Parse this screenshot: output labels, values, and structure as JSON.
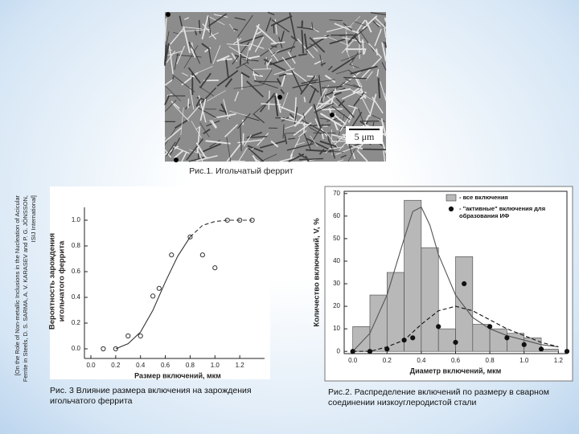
{
  "figure1": {
    "scale_label": "5 μm",
    "caption": "Рис.1. Игольчатый феррит"
  },
  "reference": [
    "[On the Role of Non-metallic Inclusions in the Nucleation of Acicular",
    "Ferrite in Steels, D. S. SARMA, A. V. KARASEV and P. G. JÖNSSON,",
    "ISIJ International]"
  ],
  "chart_data": [
    {
      "type": "scatter",
      "caption": "Рис. 3 Влияние размера включения на зарождения игольчатого феррита",
      "xlabel": "Размер включений, мкм",
      "ylabel": [
        "Вероятность зарождения",
        "игольчатого феррита"
      ],
      "xlim": [
        0,
        1.4
      ],
      "xticks": [
        {
          "value": 0,
          "label": "0.0"
        },
        0.2,
        0.4,
        0.6,
        0.8,
        {
          "value": 1,
          "label": "1.0"
        },
        1.2
      ],
      "ylim": [
        -0.05,
        1.1
      ],
      "yticks": [
        {
          "value": 0,
          "label": "0.0"
        },
        0.2,
        0.4,
        0.6,
        0.8,
        {
          "value": 1,
          "label": "1.0"
        }
      ],
      "box": false,
      "series": [
        {
          "type": "scatter",
          "color": "#333333",
          "filled": false,
          "x": [
            0.1,
            0.2,
            0.3,
            0.4,
            0.5,
            0.55,
            0.65,
            0.8,
            0.9,
            1.0,
            1.1,
            1.2,
            1.3
          ],
          "values": [
            0,
            0,
            0.1,
            0.1,
            0.41,
            0.47,
            0.73,
            0.87,
            0.73,
            0.63,
            1.0,
            1.0,
            1.0
          ]
        },
        {
          "type": "line",
          "color": "#333333",
          "dashed": false,
          "x": [
            0.2,
            0.3,
            0.4,
            0.5,
            0.6,
            0.7,
            0.8
          ],
          "values": [
            0,
            0.04,
            0.13,
            0.3,
            0.52,
            0.72,
            0.87
          ]
        },
        {
          "type": "line",
          "color": "#333333",
          "dashed": true,
          "x": [
            0.8,
            0.9,
            1.0,
            1.1,
            1.2,
            1.3
          ],
          "values": [
            0.87,
            0.96,
            0.99,
            1.0,
            1.0,
            1.0
          ]
        }
      ]
    },
    {
      "type": "histogram",
      "caption": "Рис.2. Распределение включений по размеру в сварном соединении низкоуглеродистой стали",
      "xlabel": "Диаметр включений, мкм",
      "ylabel": "Количество включений, V, %",
      "xlim": [
        -0.05,
        1.25
      ],
      "xticks": [
        {
          "value": 0,
          "label": "0.0"
        },
        0.2,
        0.4,
        0.6,
        0.8,
        {
          "value": 1,
          "label": "1.0"
        },
        1.2
      ],
      "ylim": [
        -1,
        71
      ],
      "yticks": [
        0,
        10,
        20,
        30,
        40,
        50,
        60,
        70
      ],
      "box": true,
      "legend": "upper right",
      "bins": [
        0,
        0.1,
        0.2,
        0.3,
        0.4,
        0.5,
        0.6,
        0.7,
        0.8,
        0.9,
        1.0,
        1.1,
        1.2
      ],
      "series": [
        {
          "type": "histogram",
          "name": "- все включения",
          "color": "#b8b8b8",
          "values": [
            11,
            25,
            35,
            67,
            46,
            10,
            42,
            12,
            10,
            8,
            6,
            1
          ]
        },
        {
          "type": "line",
          "color": "#555555",
          "dashed": false,
          "x": [
            0,
            0.1,
            0.2,
            0.3,
            0.35,
            0.4,
            0.45,
            0.5,
            0.6,
            0.7,
            0.8,
            0.9,
            1.0,
            1.1,
            1.2
          ],
          "values": [
            0,
            8,
            25,
            50,
            62,
            64,
            56,
            43,
            25,
            15,
            10,
            7,
            5,
            3,
            2
          ]
        },
        {
          "type": "scatter",
          "name": "- \"активные\" включения для образования ИФ",
          "color": "#111111",
          "filled": true,
          "x": [
            0,
            0.1,
            0.2,
            0.3,
            0.35,
            0.5,
            0.6,
            0.65,
            0.8,
            0.9,
            1.0,
            1.1,
            1.25
          ],
          "values": [
            0,
            0,
            1,
            5,
            6,
            11,
            4,
            30,
            11,
            6,
            3,
            1,
            0
          ]
        },
        {
          "type": "line",
          "color": "#111111",
          "dashed": true,
          "x": [
            0,
            0.1,
            0.2,
            0.3,
            0.4,
            0.5,
            0.6,
            0.7,
            0.8,
            0.9,
            1.0,
            1.1,
            1.2
          ],
          "values": [
            0,
            0,
            2,
            5,
            12,
            18,
            20,
            18,
            14,
            10,
            7,
            4,
            2
          ]
        }
      ]
    }
  ]
}
